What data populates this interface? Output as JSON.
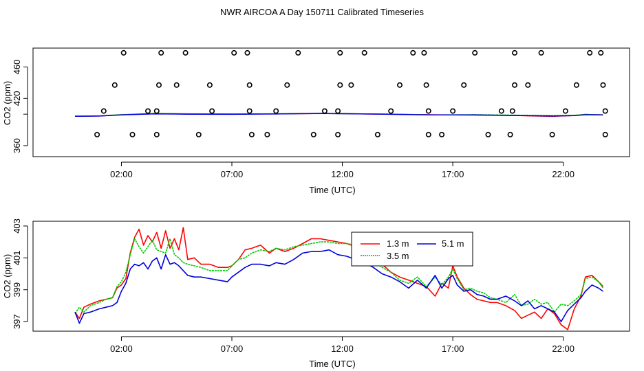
{
  "title": "NWR AIRCOA A  Day 150711  Calibrated Timeseries",
  "colors": {
    "s13": "#ff0000",
    "s35": "#00bb00",
    "s51": "#0000dd",
    "s_green_top": "#00cc00",
    "points": "#000000"
  },
  "chart_data": [
    {
      "type": "line",
      "xlabel": "Time (UTC)",
      "ylabel": "CO2 (ppm)",
      "xlim": [
        -2.0,
        25.0
      ],
      "ylim": [
        346,
        484
      ],
      "xticks": [
        2,
        7,
        12,
        17,
        22
      ],
      "xtick_labels": [
        "02:00",
        "07:00",
        "12:00",
        "17:00",
        "22:00"
      ],
      "yticks": [
        360,
        420,
        460
      ],
      "ytick_labels": [
        "360",
        "420",
        "460"
      ],
      "extra_ytick": 400,
      "scatter_points": [
        {
          "x": 0.9,
          "y": 374
        },
        {
          "x": 2.5,
          "y": 374
        },
        {
          "x": 3.6,
          "y": 374
        },
        {
          "x": 5.5,
          "y": 374
        },
        {
          "x": 7.9,
          "y": 374
        },
        {
          "x": 8.6,
          "y": 374
        },
        {
          "x": 10.7,
          "y": 374
        },
        {
          "x": 11.8,
          "y": 374
        },
        {
          "x": 13.6,
          "y": 374
        },
        {
          "x": 15.9,
          "y": 374
        },
        {
          "x": 16.5,
          "y": 374
        },
        {
          "x": 18.6,
          "y": 374
        },
        {
          "x": 19.6,
          "y": 374
        },
        {
          "x": 21.5,
          "y": 374
        },
        {
          "x": 23.9,
          "y": 374
        },
        {
          "x": 1.2,
          "y": 404
        },
        {
          "x": 3.2,
          "y": 404
        },
        {
          "x": 3.6,
          "y": 404
        },
        {
          "x": 6.1,
          "y": 404
        },
        {
          "x": 7.8,
          "y": 404
        },
        {
          "x": 9.0,
          "y": 404
        },
        {
          "x": 11.2,
          "y": 404
        },
        {
          "x": 11.8,
          "y": 404
        },
        {
          "x": 14.2,
          "y": 404
        },
        {
          "x": 15.9,
          "y": 404
        },
        {
          "x": 17.0,
          "y": 404
        },
        {
          "x": 19.2,
          "y": 404
        },
        {
          "x": 19.7,
          "y": 404
        },
        {
          "x": 22.1,
          "y": 404
        },
        {
          "x": 23.9,
          "y": 404
        },
        {
          "x": 1.7,
          "y": 437
        },
        {
          "x": 3.7,
          "y": 437
        },
        {
          "x": 4.5,
          "y": 437
        },
        {
          "x": 6.0,
          "y": 437
        },
        {
          "x": 7.8,
          "y": 437
        },
        {
          "x": 9.5,
          "y": 437
        },
        {
          "x": 11.9,
          "y": 437
        },
        {
          "x": 12.4,
          "y": 437
        },
        {
          "x": 14.6,
          "y": 437
        },
        {
          "x": 15.8,
          "y": 437
        },
        {
          "x": 17.5,
          "y": 437
        },
        {
          "x": 19.8,
          "y": 437
        },
        {
          "x": 20.4,
          "y": 437
        },
        {
          "x": 22.6,
          "y": 437
        },
        {
          "x": 23.8,
          "y": 437
        },
        {
          "x": 2.1,
          "y": 478
        },
        {
          "x": 3.8,
          "y": 478
        },
        {
          "x": 4.9,
          "y": 478
        },
        {
          "x": 7.1,
          "y": 478
        },
        {
          "x": 7.7,
          "y": 478
        },
        {
          "x": 10.0,
          "y": 478
        },
        {
          "x": 11.9,
          "y": 478
        },
        {
          "x": 13.0,
          "y": 478
        },
        {
          "x": 15.2,
          "y": 478
        },
        {
          "x": 15.7,
          "y": 478
        },
        {
          "x": 18.0,
          "y": 478
        },
        {
          "x": 19.8,
          "y": 478
        },
        {
          "x": 21.0,
          "y": 478
        },
        {
          "x": 23.2,
          "y": 478
        },
        {
          "x": 23.7,
          "y": 478
        }
      ],
      "series": [
        {
          "name": "1.3 m",
          "color": "#ff0000",
          "x": [
            -0.1,
            1.0,
            2.0,
            3.5,
            5.0,
            7.0,
            9.0,
            11.0,
            12.0,
            14.0,
            16.0,
            18.0,
            20.0,
            21.5,
            22.5,
            23.0,
            23.8
          ],
          "values": [
            397.5,
            397.6,
            399.3,
            400.8,
            400.5,
            400.2,
            400.4,
            400.8,
            400.7,
            400.0,
            399.3,
            398.8,
            398.1,
            397.2,
            398.3,
            399.7,
            399.1
          ]
        },
        {
          "name": "3.5 m",
          "color": "#00cc00",
          "x": [
            -0.1,
            1.0,
            2.0,
            3.5,
            5.0,
            7.0,
            9.0,
            11.0,
            12.0,
            14.0,
            16.0,
            18.0,
            20.0,
            21.5,
            22.5,
            23.0,
            23.8
          ],
          "values": [
            397.4,
            397.9,
            399.4,
            401.0,
            400.3,
            400.1,
            400.5,
            401.0,
            400.6,
            400.2,
            399.0,
            399.4,
            398.7,
            398.3,
            398.6,
            399.6,
            399.2
          ]
        },
        {
          "name": "5.1 m",
          "color": "#0000dd",
          "x": [
            -0.1,
            1.0,
            2.0,
            3.5,
            5.0,
            7.0,
            9.0,
            11.0,
            12.0,
            14.0,
            16.0,
            18.0,
            20.0,
            21.5,
            22.5,
            23.0,
            23.8
          ],
          "values": [
            397.3,
            397.6,
            399.1,
            400.4,
            400.0,
            399.8,
            400.2,
            400.9,
            400.6,
            399.9,
            399.1,
            399.0,
            398.3,
            397.6,
            398.2,
            399.3,
            399.0
          ]
        }
      ]
    },
    {
      "type": "line",
      "xlabel": "Time (UTC)",
      "ylabel": "CO2 (ppm)",
      "xlim": [
        -2.0,
        25.0
      ],
      "ylim": [
        396.4,
        403.3
      ],
      "xticks": [
        2,
        7,
        12,
        17,
        22
      ],
      "xtick_labels": [
        "02:00",
        "07:00",
        "12:00",
        "17:00",
        "22:00"
      ],
      "yticks": [
        397,
        399,
        401,
        403
      ],
      "ytick_labels": [
        "397",
        "399",
        "401",
        "403"
      ],
      "legend": {
        "placement": "top-right",
        "entries": [
          "1.3 m",
          "5.1 m",
          "3.5 m"
        ]
      },
      "series": [
        {
          "name": "1.3 m",
          "color": "#ff0000",
          "x": [
            -0.1,
            0.1,
            0.3,
            0.6,
            1.0,
            1.3,
            1.6,
            1.8,
            2.0,
            2.2,
            2.4,
            2.6,
            2.8,
            3.0,
            3.2,
            3.4,
            3.6,
            3.8,
            4.0,
            4.2,
            4.4,
            4.6,
            4.8,
            5.0,
            5.3,
            5.6,
            6.0,
            6.4,
            6.8,
            7.0,
            7.3,
            7.6,
            7.9,
            8.3,
            8.7,
            9.0,
            9.4,
            9.8,
            10.2,
            10.6,
            11.0,
            11.4,
            11.8,
            12.2,
            12.6,
            13.0,
            13.4,
            13.8,
            14.2,
            14.6,
            15.0,
            15.4,
            15.8,
            16.2,
            16.5,
            16.8,
            17.0,
            17.2,
            17.5,
            17.8,
            18.1,
            18.4,
            18.7,
            19.0,
            19.4,
            19.8,
            20.1,
            20.4,
            20.7,
            21.0,
            21.3,
            21.6,
            21.9,
            22.2,
            22.5,
            22.8,
            23.0,
            23.3,
            23.6,
            23.8
          ],
          "values": [
            397.6,
            397.2,
            397.9,
            398.1,
            398.3,
            398.4,
            398.5,
            399.1,
            399.3,
            399.7,
            401.3,
            402.3,
            402.8,
            401.8,
            402.4,
            402.0,
            402.6,
            401.6,
            402.7,
            401.6,
            402.2,
            401.5,
            402.9,
            400.9,
            401.0,
            400.6,
            400.6,
            400.4,
            400.4,
            400.5,
            400.9,
            401.5,
            401.6,
            401.8,
            401.3,
            401.6,
            401.4,
            401.6,
            401.9,
            402.2,
            402.2,
            402.1,
            402.0,
            401.9,
            401.7,
            401.2,
            400.9,
            400.6,
            400.1,
            399.8,
            399.6,
            399.4,
            399.2,
            398.6,
            399.4,
            399.1,
            400.5,
            399.8,
            399.1,
            398.7,
            398.4,
            398.3,
            398.2,
            398.2,
            398.0,
            397.7,
            397.2,
            397.4,
            397.6,
            397.2,
            397.8,
            397.5,
            396.8,
            396.5,
            397.8,
            398.6,
            399.8,
            399.9,
            399.5,
            399.2
          ]
        },
        {
          "name": "3.5 m",
          "color": "#00cc00",
          "x": [
            -0.1,
            0.1,
            0.3,
            0.6,
            1.0,
            1.3,
            1.6,
            1.8,
            2.0,
            2.2,
            2.4,
            2.6,
            2.8,
            3.0,
            3.2,
            3.4,
            3.6,
            3.8,
            4.0,
            4.2,
            4.4,
            4.6,
            4.8,
            5.0,
            5.3,
            5.6,
            6.0,
            6.4,
            6.8,
            7.0,
            7.3,
            7.6,
            7.9,
            8.3,
            8.7,
            9.0,
            9.4,
            9.8,
            10.2,
            10.6,
            11.0,
            11.4,
            11.8,
            12.2,
            12.6,
            13.0,
            13.4,
            13.8,
            14.2,
            14.6,
            15.0,
            15.4,
            15.8,
            16.2,
            16.5,
            16.8,
            17.0,
            17.2,
            17.5,
            17.8,
            18.1,
            18.4,
            18.7,
            19.0,
            19.4,
            19.8,
            20.1,
            20.4,
            20.7,
            21.0,
            21.3,
            21.6,
            21.9,
            22.2,
            22.5,
            22.8,
            23.0,
            23.3,
            23.6,
            23.8
          ],
          "values": [
            397.5,
            397.9,
            397.6,
            398.0,
            398.2,
            398.4,
            398.5,
            399.2,
            399.5,
            400.1,
            401.2,
            402.2,
            401.7,
            401.3,
            401.7,
            402.1,
            401.5,
            401.4,
            401.3,
            402.2,
            401.2,
            401.0,
            400.7,
            400.6,
            400.5,
            400.4,
            400.2,
            400.2,
            400.2,
            400.5,
            400.9,
            401.0,
            401.3,
            401.5,
            401.4,
            401.6,
            401.5,
            401.7,
            401.8,
            401.9,
            402.0,
            402.0,
            401.9,
            401.9,
            401.8,
            401.4,
            400.9,
            400.4,
            400.1,
            399.6,
            399.4,
            399.8,
            399.2,
            399.8,
            399.3,
            399.8,
            400.3,
            399.7,
            399.0,
            399.1,
            398.9,
            398.8,
            398.5,
            398.4,
            398.2,
            398.7,
            398.0,
            398.1,
            398.4,
            398.1,
            398.2,
            397.6,
            398.1,
            398.0,
            398.3,
            398.7,
            399.7,
            399.8,
            399.5,
            399.1
          ]
        },
        {
          "name": "5.1 m",
          "color": "#0000dd",
          "x": [
            -0.1,
            0.1,
            0.3,
            0.6,
            1.0,
            1.3,
            1.6,
            1.8,
            2.0,
            2.2,
            2.4,
            2.6,
            2.8,
            3.0,
            3.2,
            3.4,
            3.6,
            3.8,
            4.0,
            4.2,
            4.4,
            4.6,
            4.8,
            5.0,
            5.3,
            5.6,
            6.0,
            6.4,
            6.8,
            7.0,
            7.3,
            7.6,
            7.9,
            8.3,
            8.7,
            9.0,
            9.4,
            9.8,
            10.2,
            10.6,
            11.0,
            11.4,
            11.8,
            12.2,
            12.6,
            13.0,
            13.4,
            13.8,
            14.2,
            14.6,
            15.0,
            15.4,
            15.8,
            16.2,
            16.5,
            16.8,
            17.0,
            17.2,
            17.5,
            17.8,
            18.1,
            18.4,
            18.7,
            19.0,
            19.4,
            19.8,
            20.1,
            20.4,
            20.7,
            21.0,
            21.3,
            21.6,
            21.9,
            22.2,
            22.5,
            22.8,
            23.0,
            23.3,
            23.6,
            23.8
          ],
          "values": [
            397.6,
            396.9,
            397.5,
            397.6,
            397.8,
            397.9,
            398.0,
            398.2,
            398.9,
            399.4,
            400.3,
            400.6,
            400.5,
            400.7,
            400.3,
            400.8,
            401.0,
            400.3,
            401.2,
            400.6,
            400.7,
            400.5,
            400.2,
            399.9,
            399.8,
            399.8,
            399.7,
            399.6,
            399.5,
            399.8,
            400.1,
            400.4,
            400.6,
            400.6,
            400.5,
            400.7,
            400.6,
            400.9,
            401.3,
            401.4,
            401.4,
            401.5,
            401.2,
            401.1,
            400.9,
            400.7,
            400.4,
            400.0,
            399.8,
            399.5,
            399.1,
            399.6,
            399.1,
            399.9,
            399.1,
            399.7,
            399.9,
            399.3,
            398.9,
            399.0,
            398.7,
            398.6,
            398.4,
            398.4,
            398.6,
            398.3,
            398.0,
            398.3,
            397.8,
            398.0,
            397.8,
            397.6,
            397.0,
            397.7,
            398.1,
            398.5,
            398.9,
            399.3,
            399.1,
            398.9
          ]
        }
      ]
    }
  ]
}
